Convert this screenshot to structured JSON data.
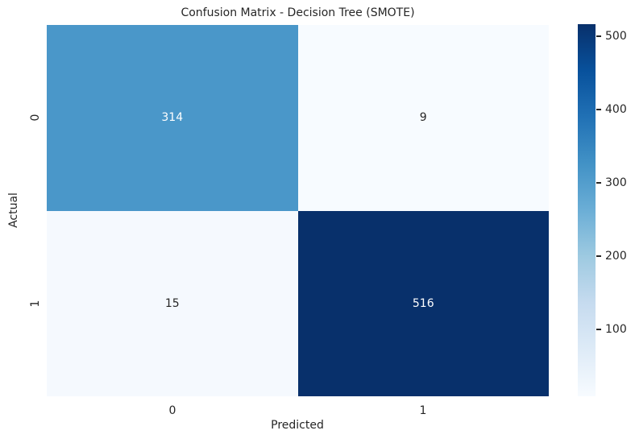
{
  "figure": {
    "background": "#ffffff",
    "text_color": "#262626"
  },
  "chart_data": {
    "type": "heatmap",
    "title": "Confusion Matrix - Decision Tree (SMOTE)",
    "xlabel": "Predicted",
    "ylabel": "Actual",
    "x_ticklabels": [
      "0",
      "1"
    ],
    "y_ticklabels": [
      "0",
      "1"
    ],
    "matrix": [
      [
        314,
        9
      ],
      [
        15,
        516
      ]
    ],
    "vmin": 9,
    "vmax": 516,
    "colormap": "Blues",
    "cell_colors": [
      [
        "#4a97c9",
        "#f7fbff"
      ],
      [
        "#f5f9fe",
        "#08306b"
      ]
    ],
    "annot_colors": [
      [
        "#ffffff",
        "#262626"
      ],
      [
        "#262626",
        "#ffffff"
      ]
    ],
    "colormap_stops": [
      "#f7fbff",
      "#deebf7",
      "#c6dbef",
      "#9ecae1",
      "#6baed6",
      "#4292c6",
      "#2171b5",
      "#08519c",
      "#08306b"
    ],
    "colorbar": {
      "ticks": [
        100,
        200,
        300,
        400,
        500
      ],
      "position": "right"
    },
    "legend": "none",
    "grid": false
  }
}
